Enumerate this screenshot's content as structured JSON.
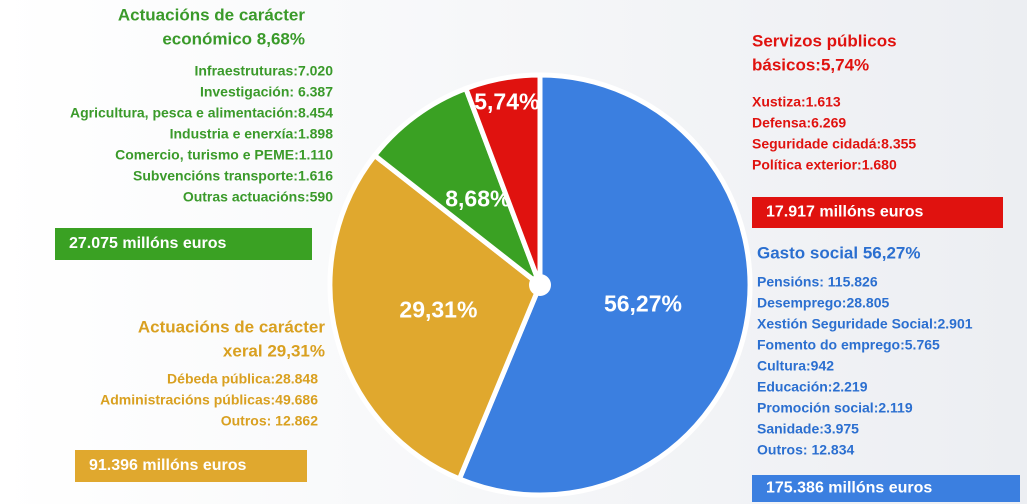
{
  "chart_data": {
    "type": "pie",
    "values": [
      56.27,
      29.31,
      8.68,
      5.74
    ],
    "value_labels": [
      "56,27%",
      "29,31%",
      "8,68%",
      "5,74%"
    ],
    "colors": [
      "#3b7fe0",
      "#e0a82e",
      "#3aa123",
      "#e0120f"
    ],
    "groups": [
      {
        "title": [
          "Gasto social 56,27%"
        ],
        "items": [
          "Pensións: 115.826",
          "Desemprego:28.805",
          "Xestión Seguridade Social:2.901",
          "Fomento do emprego:5.765",
          "Cultura:942",
          "Educación:2.219",
          "Promoción social:2.119",
          "Sanidade:3.975",
          " Outros: 12.834"
        ],
        "total": "175.386 millóns euros"
      },
      {
        "title": [
          "Actuacións de carácter",
          "xeral 29,31%"
        ],
        "items": [
          "Débeda pública:28.848",
          "Administracións públicas:49.686",
          "Outros: 12.862"
        ],
        "total": "91.396 millóns euros"
      },
      {
        "title": [
          "Actuacións de carácter",
          "económico 8,68%"
        ],
        "items": [
          "Infraestruturas:7.020",
          "Investigación: 6.387",
          "Agricultura, pesca e alimentación:8.454",
          "Industria e enerxía:1.898",
          "Comercio, turismo e PEME:1.110",
          "Subvencións transporte:1.616",
          "Outras actuacións:590"
        ],
        "total": "27.075 millóns euros"
      },
      {
        "title": [
          "Servizos públicos",
          "básicos:5,74%"
        ],
        "items": [
          "Xustiza:1.613",
          "Defensa:6.269",
          "Seguridade cidadá:8.355",
          "Política exterior:1.680"
        ],
        "total": "17.917 millóns euros"
      }
    ]
  }
}
